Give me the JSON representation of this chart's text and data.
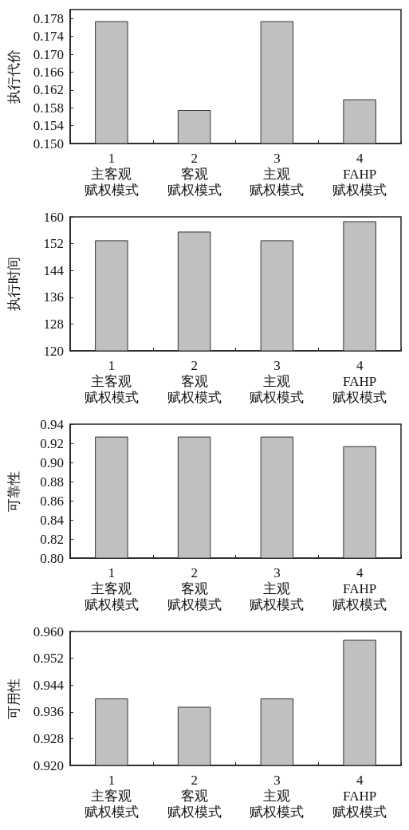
{
  "chart_data": [
    {
      "type": "bar",
      "ylabel": "执行代价",
      "categories": [
        "1主客观赋权模式",
        "2客观赋权模式",
        "3主观赋权模式",
        "4FAHP赋权模式"
      ],
      "values": [
        0.1774,
        0.1575,
        0.1774,
        0.1599
      ],
      "color": "#c0c0c0",
      "ylim": [
        0.15,
        0.18
      ],
      "yticks": [
        {
          "value": 0.15,
          "label": "0.150"
        },
        {
          "value": 0.154,
          "label": "0.154"
        },
        {
          "value": 0.158,
          "label": "0.158"
        },
        {
          "value": 0.162,
          "label": "0.162"
        },
        {
          "value": 0.166,
          "label": "0.166"
        },
        {
          "value": 0.17,
          "label": "0.170"
        },
        {
          "value": 0.174,
          "label": "0.174"
        },
        {
          "value": 0.178,
          "label": "0.178"
        }
      ],
      "grid": false
    },
    {
      "type": "bar",
      "ylabel": "执行时间",
      "categories": [
        "1主客观赋权模式",
        "2客观赋权模式",
        "3主观赋权模式",
        "4FAHP赋权模式"
      ],
      "values": [
        153.0,
        155.6,
        153.0,
        158.7
      ],
      "color": "#c0c0c0",
      "ylim": [
        120,
        160
      ],
      "yticks": [
        120,
        128,
        136,
        144,
        152,
        160
      ],
      "grid": false
    },
    {
      "type": "bar",
      "ylabel": "可靠性",
      "categories": [
        "1主客观赋权模式",
        "2客观赋权模式",
        "3主观赋权模式",
        "4FAHP赋权模式"
      ],
      "values": [
        0.927,
        0.927,
        0.927,
        0.917
      ],
      "color": "#c0c0c0",
      "ylim": [
        0.8,
        0.94
      ],
      "yticks": [
        {
          "value": 0.8,
          "label": "0.80"
        },
        {
          "value": 0.82,
          "label": "0.82"
        },
        {
          "value": 0.84,
          "label": "0.84"
        },
        {
          "value": 0.86,
          "label": "0.86"
        },
        {
          "value": 0.88,
          "label": "0.88"
        },
        {
          "value": 0.9,
          "label": "0.90"
        },
        {
          "value": 0.92,
          "label": "0.92"
        },
        {
          "value": 0.94,
          "label": "0.94"
        }
      ],
      "grid": false
    },
    {
      "type": "bar",
      "ylabel": "可用性",
      "categories": [
        "1主客观赋权模式",
        "2客观赋权模式",
        "3主观赋权模式",
        "4FAHP赋权模式"
      ],
      "values": [
        0.94,
        0.9375,
        0.94,
        0.9575
      ],
      "color": "#c0c0c0",
      "ylim": [
        0.92,
        0.96
      ],
      "yticks": [
        {
          "value": 0.92,
          "label": "0.920"
        },
        {
          "value": 0.928,
          "label": "0.928"
        },
        {
          "value": 0.936,
          "label": "0.936"
        },
        {
          "value": 0.944,
          "label": "0.944"
        },
        {
          "value": 0.952,
          "label": "0.952"
        },
        {
          "value": 0.96,
          "label": "0.960"
        }
      ],
      "grid": false
    }
  ]
}
